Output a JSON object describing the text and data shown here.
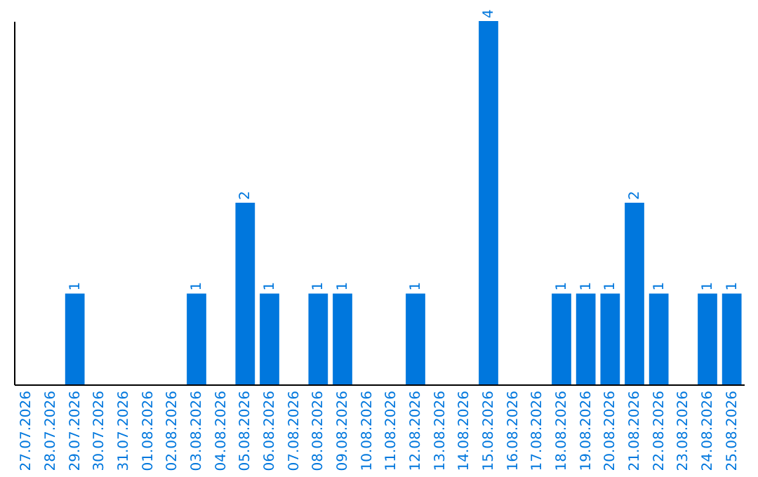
{
  "chart_data": {
    "type": "bar",
    "categories": [
      "27.07.2026",
      "28.07.2026",
      "29.07.2026",
      "30.07.2026",
      "31.07.2026",
      "01.08.2026",
      "02.08.2026",
      "03.08.2026",
      "04.08.2026",
      "05.08.2026",
      "06.08.2026",
      "07.08.2026",
      "08.08.2026",
      "09.08.2026",
      "10.08.2026",
      "11.08.2026",
      "12.08.2026",
      "13.08.2026",
      "14.08.2026",
      "15.08.2026",
      "16.08.2026",
      "17.08.2026",
      "18.08.2026",
      "19.08.2026",
      "20.08.2026",
      "21.08.2026",
      "22.08.2026",
      "23.08.2026",
      "24.08.2026",
      "25.08.2026"
    ],
    "values": [
      0,
      0,
      1,
      0,
      0,
      0,
      0,
      1,
      0,
      2,
      1,
      0,
      1,
      1,
      0,
      0,
      1,
      0,
      0,
      4,
      0,
      0,
      1,
      1,
      1,
      2,
      1,
      0,
      1,
      1
    ],
    "value_labels": [
      null,
      null,
      "1",
      null,
      null,
      null,
      null,
      "1",
      null,
      "2",
      "1",
      null,
      "1",
      "1",
      null,
      null,
      "1",
      null,
      null,
      "4",
      null,
      null,
      "1",
      "1",
      "1",
      "2",
      "1",
      null,
      "1",
      "1"
    ],
    "color": "#0077dd",
    "ylim": [
      0,
      4
    ],
    "grid": false
  }
}
